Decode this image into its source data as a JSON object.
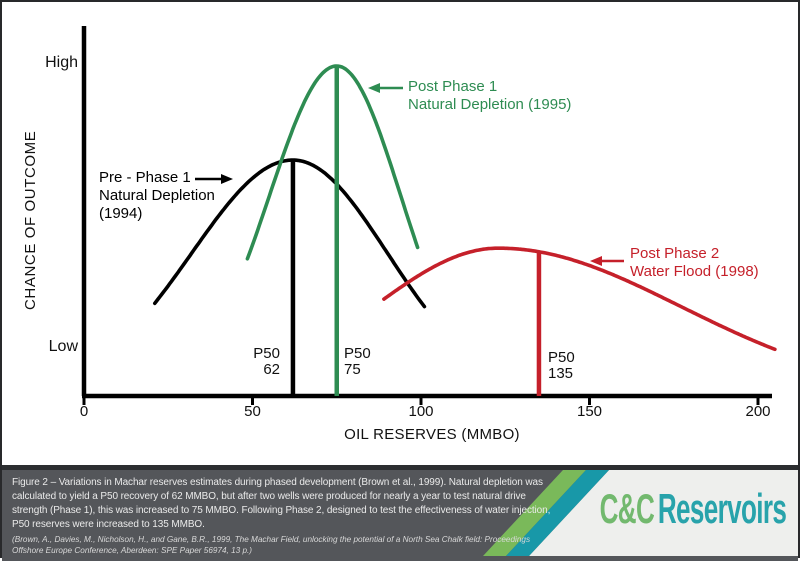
{
  "chart_data": {
    "type": "line",
    "title": "Variations in Machar reserves estimates during phased development",
    "xlabel": "OIL RESERVES (MMBO)",
    "ylabel": "CHANCE OF OUTCOME",
    "x_ticks": [
      0,
      50,
      100,
      150,
      200
    ],
    "xlim": [
      0,
      205
    ],
    "y_axis_labels": {
      "high": "High",
      "low": "Low"
    },
    "grid": false,
    "legend_position": "annotations-on-curves",
    "series": [
      {
        "id": "pre-phase-1",
        "label_lines": [
          "Pre - Phase 1",
          "Natural Depletion",
          "(1994)"
        ],
        "color": "#000000",
        "mean": 62,
        "sigma_left": 30,
        "sigma_right": 28,
        "peak": 0.715,
        "x_range": [
          21,
          101
        ],
        "p50": 62,
        "p50_label": {
          "title": "P50",
          "value": "62"
        }
      },
      {
        "id": "post-phase-1",
        "label_lines": [
          "Post Phase 1",
          "Natural Depletion (1995)"
        ],
        "color": "#2e8c52",
        "mean": 75,
        "sigma_left": 20,
        "sigma_right": 19,
        "peak": 1.0,
        "x_range": [
          48.5,
          99
        ],
        "p50": 75,
        "p50_label": {
          "title": "P50",
          "value": "75"
        }
      },
      {
        "id": "post-phase-2",
        "label_lines": [
          "Post Phase 2",
          "Water Flood (1998)"
        ],
        "color": "#c5202a",
        "mean": 123,
        "sigma_left": 37,
        "sigma_right": 54,
        "peak": 0.448,
        "x_range": [
          89,
          205
        ],
        "p50": 135,
        "p50_label": {
          "title": "P50",
          "value": "135"
        }
      }
    ]
  },
  "banner": {
    "caption": "Figure 2 – Variations in Machar reserves estimates during phased development (Brown et al., 1999). Natural depletion was calculated to yield a P50 recovery of 62 MMBO, but after two wells were produced for nearly a year to test natural drive strength (Phase 1), this was increased to 75 MMBO. Following Phase 2, designed to test the effectiveness of water injection, P50 reserves were increased to 135 MMBO.",
    "citation": "(Brown, A., Davies, M., Nicholson, H., and Gane, B.R., 1999, The Machar Field, unlocking the potential of a North Sea Chalk field: Proceedings Offshore Europe Conference, Aberdeen: SPE Paper 56974, 13 p.)",
    "colors": {
      "background": "#54565a",
      "top_edge": "#2c2e30",
      "stripe_green": "#7ab95a",
      "stripe_teal": "#1898a8",
      "panel": "#eeefed"
    },
    "logo": {
      "cc": "C&C",
      "reservoirs": "Reservoirs",
      "cc_color": "#72b96e",
      "reservoirs_color": "#28a3ab"
    }
  }
}
